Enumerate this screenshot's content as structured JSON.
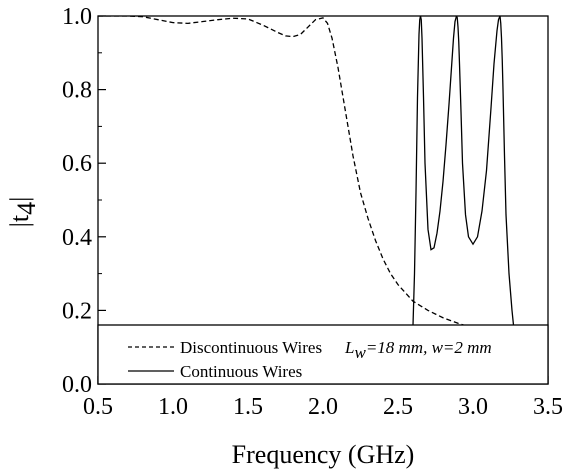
{
  "chart_data": {
    "type": "line",
    "xlabel": "Frequency (GHz)",
    "ylabel": {
      "main": "|t",
      "sub": "4",
      "close": "|"
    },
    "xlim": [
      0.5,
      3.5
    ],
    "ylim": [
      0.0,
      1.0
    ],
    "xticks": [
      "0.5",
      "1.0",
      "1.5",
      "2.0",
      "2.5",
      "3.0",
      "3.5"
    ],
    "yticks": [
      "0.0",
      "0.2",
      "0.4",
      "0.6",
      "0.8",
      "1.0"
    ],
    "grid": false,
    "legend_position": "bottom",
    "legend": {
      "series0_label": "Discontinuous Wires",
      "annotation_L": "L",
      "annotation_L_sub": "w",
      "annotation_rest": "=18 mm, w=2 mm",
      "series1_label": "Continuous Wires"
    },
    "series": [
      {
        "name": "Discontinuous Wires",
        "style": "dashed",
        "color": "#000000",
        "x": [
          0.5,
          0.6,
          0.7,
          0.8,
          0.9,
          1.0,
          1.1,
          1.2,
          1.3,
          1.4,
          1.5,
          1.6,
          1.7,
          1.75,
          1.8,
          1.85,
          1.9,
          1.95,
          2.0,
          2.03,
          2.06,
          2.1,
          2.15,
          2.2,
          2.25,
          2.3,
          2.35,
          2.4,
          2.45,
          2.5,
          2.6,
          2.7,
          2.8,
          2.9,
          3.0,
          3.1,
          3.2,
          3.3,
          3.4,
          3.45,
          3.5
        ],
        "y": [
          1.0,
          1.0,
          1.0,
          0.998,
          0.99,
          0.982,
          0.98,
          0.985,
          0.99,
          0.994,
          0.992,
          0.975,
          0.955,
          0.946,
          0.944,
          0.95,
          0.97,
          0.99,
          0.995,
          0.98,
          0.94,
          0.86,
          0.74,
          0.62,
          0.52,
          0.45,
          0.39,
          0.34,
          0.3,
          0.27,
          0.225,
          0.2,
          0.18,
          0.165,
          0.152,
          0.135,
          0.11,
          0.08,
          0.05,
          0.06,
          0.16
        ]
      },
      {
        "name": "Continuous Wires",
        "style": "solid",
        "color": "#000000",
        "x": [
          2.55,
          2.58,
          2.6,
          2.61,
          2.62,
          2.63,
          2.64,
          2.645,
          2.65,
          2.655,
          2.66,
          2.67,
          2.68,
          2.7,
          2.72,
          2.74,
          2.76,
          2.78,
          2.8,
          2.82,
          2.84,
          2.86,
          2.87,
          2.88,
          2.89,
          2.895,
          2.9,
          2.905,
          2.91,
          2.92,
          2.93,
          2.95,
          2.97,
          3.0,
          3.03,
          3.06,
          3.09,
          3.12,
          3.14,
          3.16,
          3.17,
          3.18,
          3.185,
          3.19,
          3.195,
          3.2,
          3.21,
          3.22,
          3.24,
          3.26,
          3.28,
          3.3
        ],
        "y": [
          0.0,
          0.05,
          0.16,
          0.3,
          0.52,
          0.78,
          0.95,
          0.99,
          1.0,
          0.99,
          0.94,
          0.78,
          0.6,
          0.42,
          0.365,
          0.37,
          0.41,
          0.47,
          0.55,
          0.65,
          0.76,
          0.88,
          0.94,
          0.985,
          1.0,
          0.995,
          0.97,
          0.93,
          0.87,
          0.74,
          0.6,
          0.46,
          0.4,
          0.38,
          0.4,
          0.47,
          0.58,
          0.75,
          0.87,
          0.96,
          0.99,
          1.0,
          0.98,
          0.94,
          0.88,
          0.8,
          0.62,
          0.46,
          0.3,
          0.2,
          0.12,
          0.08
        ]
      }
    ]
  }
}
